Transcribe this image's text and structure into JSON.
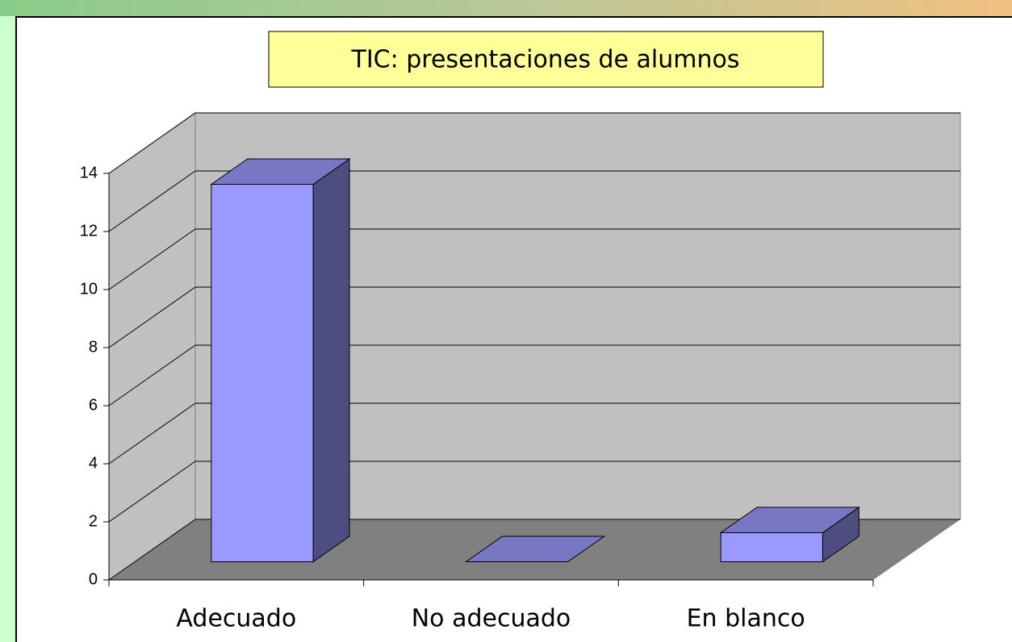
{
  "chart_data": {
    "type": "bar3d",
    "title": "TIC: presentaciones de alumnos",
    "categories": [
      "Adecuado",
      "No adecuado",
      "En blanco"
    ],
    "values": [
      13,
      0,
      1
    ],
    "color": "#9999ff",
    "ylim": [
      0,
      14
    ],
    "yticks": [
      0,
      2,
      4,
      6,
      8,
      10,
      12,
      14
    ],
    "grid": true
  }
}
